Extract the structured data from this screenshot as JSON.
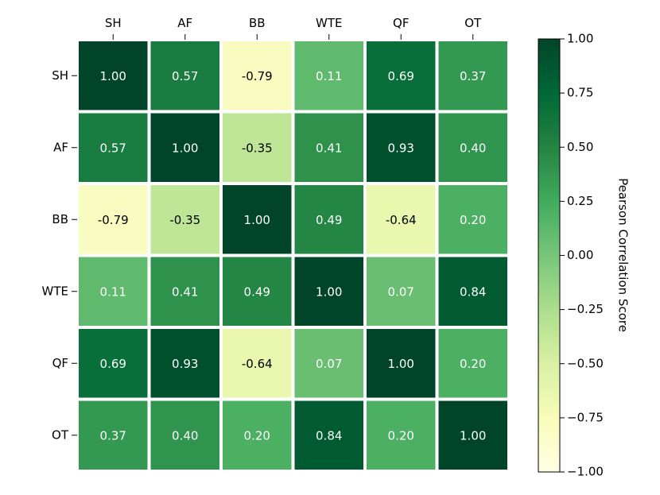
{
  "chart_data": {
    "type": "heatmap",
    "title": "",
    "x_labels": [
      "SH",
      "AF",
      "BB",
      "WTE",
      "QF",
      "OT"
    ],
    "y_labels": [
      "SH",
      "AF",
      "BB",
      "WTE",
      "QF",
      "OT"
    ],
    "x_tick_position": "top",
    "values": [
      [
        1.0,
        0.57,
        -0.79,
        0.11,
        0.69,
        0.37
      ],
      [
        0.57,
        1.0,
        -0.35,
        0.41,
        0.93,
        0.4
      ],
      [
        -0.79,
        -0.35,
        1.0,
        0.49,
        -0.64,
        0.2
      ],
      [
        0.11,
        0.41,
        0.49,
        1.0,
        0.07,
        0.84
      ],
      [
        0.69,
        0.93,
        -0.64,
        0.07,
        1.0,
        0.2
      ],
      [
        0.37,
        0.4,
        0.2,
        0.84,
        0.2,
        1.0
      ]
    ],
    "cell_text": [
      [
        "1.00",
        "0.57",
        "-0.79",
        "0.11",
        "0.69",
        "0.37"
      ],
      [
        "0.57",
        "1.00",
        "-0.35",
        "0.41",
        "0.93",
        "0.40"
      ],
      [
        "-0.79",
        "-0.35",
        "1.00",
        "0.49",
        "-0.64",
        "0.20"
      ],
      [
        "0.11",
        "0.41",
        "0.49",
        "1.00",
        "0.07",
        "0.84"
      ],
      [
        "0.69",
        "0.93",
        "-0.64",
        "0.07",
        "1.00",
        "0.20"
      ],
      [
        "0.37",
        "0.40",
        "0.20",
        "0.84",
        "0.20",
        "1.00"
      ]
    ],
    "colorbar": {
      "label": "Pearson Correlation Score",
      "range": [
        -1.0,
        1.0
      ],
      "colormap": "YlGn",
      "ticks": [
        1.0,
        0.75,
        0.5,
        0.25,
        0.0,
        -0.25,
        -0.5,
        -0.75,
        -1.0
      ],
      "tick_labels": [
        "1.00",
        "0.75",
        "0.50",
        "0.25",
        "0.00",
        "−0.25",
        "−0.50",
        "−0.75",
        "−1.00"
      ]
    },
    "grid": false,
    "cell_separator_color": "#ffffff",
    "text_color_dark": "#000000",
    "text_color_light": "#ffffff"
  }
}
